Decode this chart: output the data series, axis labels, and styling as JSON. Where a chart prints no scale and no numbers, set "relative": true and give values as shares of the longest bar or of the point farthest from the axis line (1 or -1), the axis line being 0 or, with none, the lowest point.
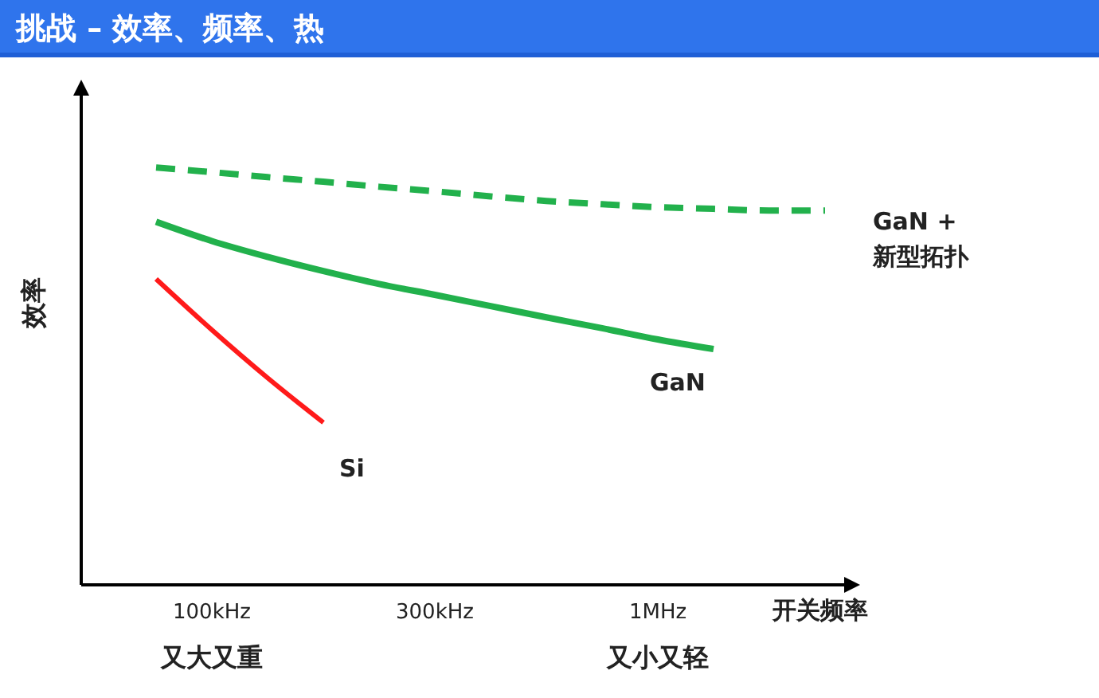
{
  "chart_data": {
    "type": "line",
    "title": "挑战 – 效率、频率、热",
    "xlabel": "开关频率",
    "ylabel": "效率",
    "relative": true,
    "categories": [
      null,
      "100kHz",
      null,
      null,
      null,
      "300kHz",
      null,
      null,
      null,
      "1MHz",
      null,
      null,
      null
    ],
    "series": [
      {
        "name": "GaN + 新型拓扑",
        "color": "#22b14c",
        "line_style": "dashed",
        "values": [
          1,
          0.989,
          0.977,
          0.966,
          0.954,
          0.943,
          0.931,
          0.92,
          0.912,
          0.905,
          0.901,
          0.897,
          0.897
        ]
      },
      {
        "name": "GaN",
        "color": "#22b14c",
        "line_style": "solid",
        "values": [
          0.87,
          0.824,
          0.786,
          0.752,
          0.721,
          0.695,
          0.668,
          0.641,
          0.615,
          0.588,
          0.565,
          null,
          null
        ]
      },
      {
        "name": "Si",
        "color": "#ff1a1a",
        "line_style": "solid",
        "values": [
          0.733,
          0.611,
          0.496,
          0.389,
          null,
          null,
          null,
          null,
          null,
          null,
          null,
          null,
          null
        ]
      }
    ],
    "annotations": [
      "又大又重",
      "又小又轻"
    ],
    "marker": "none",
    "grid": false,
    "legend": false
  }
}
